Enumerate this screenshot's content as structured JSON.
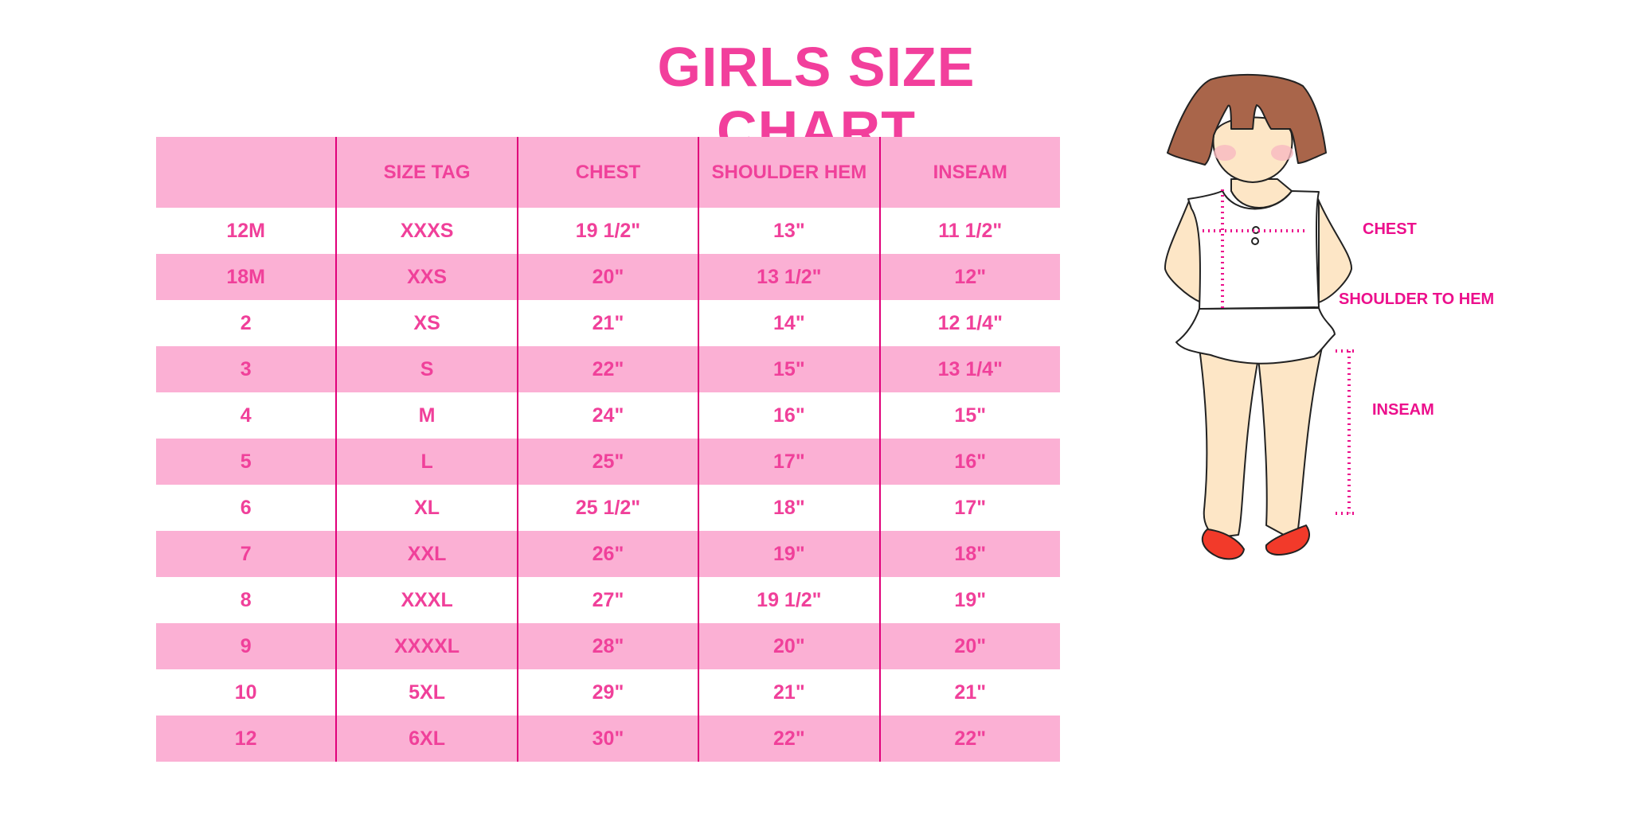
{
  "title": "GIRLS SIZE CHART",
  "table": {
    "headers": [
      "",
      "SIZE TAG",
      "CHEST",
      "SHOULDER HEM",
      "INSEAM"
    ],
    "rows": [
      [
        "12M",
        "XXXS",
        "19 1/2\"",
        "13\"",
        "11 1/2\""
      ],
      [
        "18M",
        "XXS",
        "20\"",
        "13 1/2\"",
        "12\""
      ],
      [
        "2",
        "XS",
        "21\"",
        "14\"",
        "12 1/4\""
      ],
      [
        "3",
        "S",
        "22\"",
        "15\"",
        "13 1/4\""
      ],
      [
        "4",
        "M",
        "24\"",
        "16\"",
        "15\""
      ],
      [
        "5",
        "L",
        "25\"",
        "17\"",
        "16\""
      ],
      [
        "6",
        "XL",
        "25 1/2\"",
        "18\"",
        "17\""
      ],
      [
        "7",
        "XXL",
        "26\"",
        "19\"",
        "18\""
      ],
      [
        "8",
        "XXXL",
        "27\"",
        "19 1/2\"",
        "19\""
      ],
      [
        "9",
        "XXXXL",
        "28\"",
        "20\"",
        "20\""
      ],
      [
        "10",
        "5XL",
        "29\"",
        "21\"",
        "21\""
      ],
      [
        "12",
        "6XL",
        "30\"",
        "22\"",
        "22\""
      ]
    ]
  },
  "figure": {
    "labels": {
      "chest": "CHEST",
      "shoulder_to_hem": "SHOULDER TO HEM",
      "inseam": "INSEAM"
    }
  },
  "colors": {
    "title": "#f23f9c",
    "row_fill": "#fbb0d4",
    "divider": "#e0007a",
    "measure": "#ec0f8c"
  }
}
